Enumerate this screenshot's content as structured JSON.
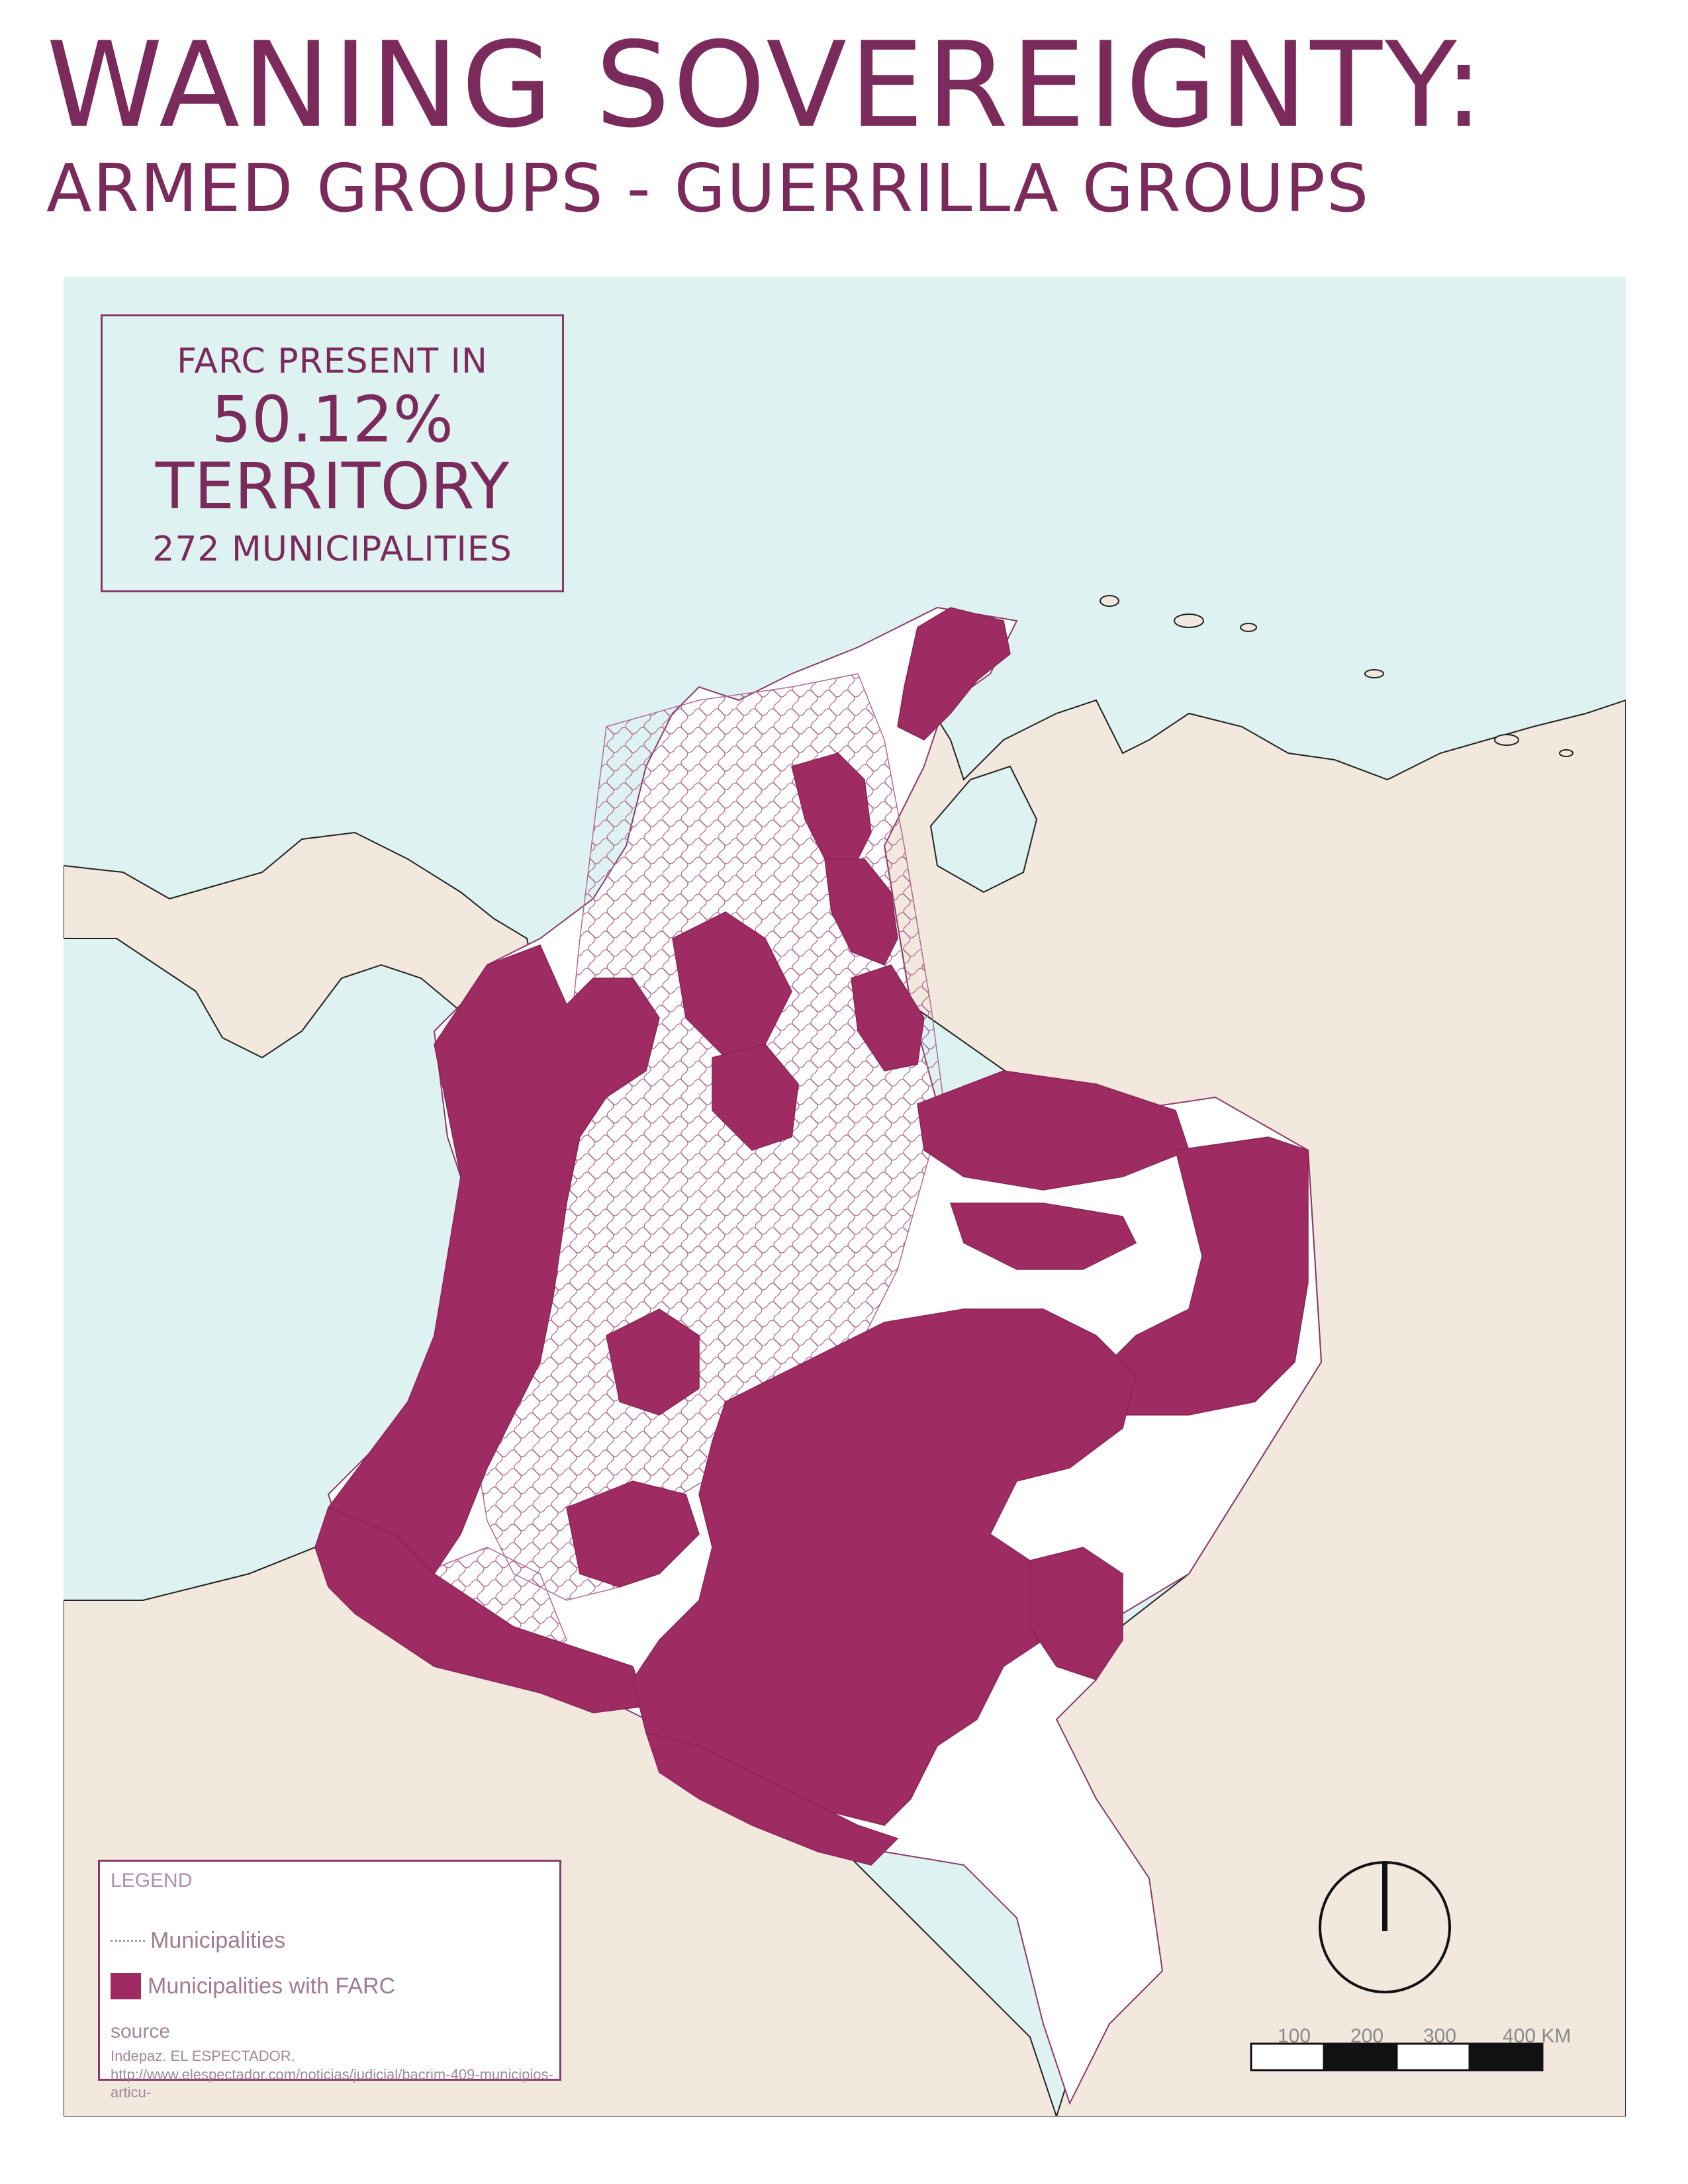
{
  "title": "WANING SOVEREIGNTY:",
  "subtitle": "ARMED GROUPS - GUERRILLA GROUPS",
  "stat_box": {
    "label": "FARC PRESENT IN",
    "percent": "50.12%",
    "unit": "TERRITORY",
    "municipalities": "272 MUNICIPALITIES"
  },
  "legend": {
    "title": "LEGEND",
    "items": [
      {
        "label": "Municipalities",
        "symbol": "dotted-line"
      },
      {
        "label": "Municipalities with FARC",
        "symbol": "filled-square"
      }
    ],
    "source_title": "source",
    "source_text": "Indepaz. EL ESPECTADOR. http://www.elespectador.com/noticias/judicial/bacrim-409-municipios-articu-"
  },
  "scale_bar": {
    "labels": [
      "100",
      "200",
      "300",
      "400 KM"
    ]
  },
  "colors": {
    "title": "#7b2a5c",
    "farc_fill": "#9e2b62",
    "sea": "#dff2f2",
    "land_neighbor": "#f2e8de",
    "land_colombia": "#ffffff",
    "boundary": "#8a3a6a"
  },
  "icons": {
    "north_arrow": "north-arrow-icon"
  }
}
